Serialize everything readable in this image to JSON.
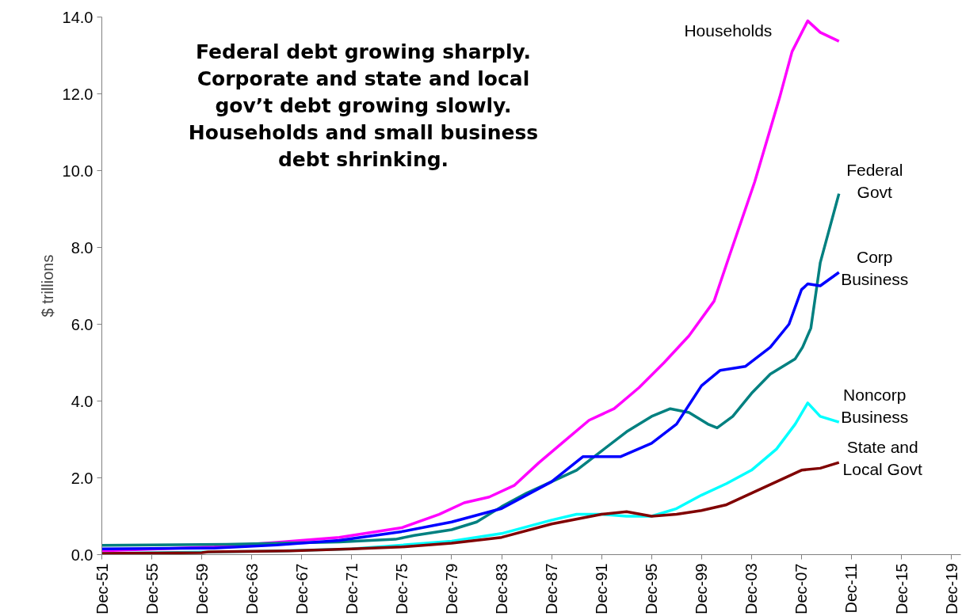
{
  "chart_data": {
    "type": "line",
    "title": "Federal debt growing sharply. Corporate and state and local gov’t debt growing slowly. Households and small business debt shrinking.",
    "ylabel": "$ trillions",
    "xlim": [
      "1951-12",
      "2020-09"
    ],
    "xticks": [
      {
        "value": "1951-12",
        "label": "Dec-51"
      },
      {
        "value": "1955-12",
        "label": "Dec-55"
      },
      {
        "value": "1959-12",
        "label": "Dec-59"
      },
      {
        "value": "1963-12",
        "label": "Dec-63"
      },
      {
        "value": "1967-12",
        "label": "Dec-67"
      },
      {
        "value": "1971-12",
        "label": "Dec-71"
      },
      {
        "value": "1975-12",
        "label": "Dec-75"
      },
      {
        "value": "1979-12",
        "label": "Dec-79"
      },
      {
        "value": "1983-12",
        "label": "Dec-83"
      },
      {
        "value": "1987-12",
        "label": "Dec-87"
      },
      {
        "value": "1991-12",
        "label": "Dec-91"
      },
      {
        "value": "1995-12",
        "label": "Dec-95"
      },
      {
        "value": "1999-12",
        "label": "Dec-99"
      },
      {
        "value": "2003-12",
        "label": "Dec-03"
      },
      {
        "value": "2007-12",
        "label": "Dec-07"
      },
      {
        "value": "2011-12",
        "label": "Dec-11"
      },
      {
        "value": "2015-12",
        "label": "Dec-15"
      },
      {
        "value": "2019-12",
        "label": "Dec-19"
      }
    ],
    "ylim": [
      0,
      14
    ],
    "yticks": [
      {
        "value": 0,
        "label": "0.0"
      },
      {
        "value": 2,
        "label": "2.0"
      },
      {
        "value": 4,
        "label": "4.0"
      },
      {
        "value": 6,
        "label": "6.0"
      },
      {
        "value": 8,
        "label": "8.0"
      },
      {
        "value": 10,
        "label": "10.0"
      },
      {
        "value": 12,
        "label": "12.0"
      },
      {
        "value": 14,
        "label": "14.0"
      }
    ],
    "grid": false,
    "marker": "none",
    "line_style": "solid",
    "series": [
      {
        "name": "Households",
        "color": "#ff00ff",
        "x": [
          "1951-12",
          "1960-12",
          "1965-12",
          "1970-12",
          "1975-12",
          "1978-12",
          "1980-12",
          "1982-12",
          "1984-12",
          "1986-12",
          "1988-12",
          "1990-12",
          "1992-12",
          "1994-12",
          "1996-12",
          "1998-12",
          "2000-12",
          "2002-03",
          "2004-03",
          "2006-03",
          "2007-03",
          "2008-06",
          "2009-06",
          "2010-12"
        ],
        "values": [
          0.1,
          0.2,
          0.32,
          0.45,
          0.7,
          1.05,
          1.35,
          1.5,
          1.8,
          2.4,
          2.95,
          3.5,
          3.8,
          4.35,
          5.0,
          5.7,
          6.6,
          7.8,
          9.7,
          11.9,
          13.1,
          13.9,
          13.6,
          13.37
        ]
      },
      {
        "name": "Federal Govt",
        "color": "#008080",
        "x": [
          "1951-12",
          "1961-12",
          "1970-12",
          "1975-06",
          "1976-12",
          "1979-12",
          "1981-12",
          "1983-12",
          "1985-12",
          "1987-12",
          "1989-12",
          "1991-12",
          "1993-12",
          "1995-12",
          "1997-06",
          "1998-12",
          "2000-06",
          "2001-03",
          "2002-06",
          "2003-12",
          "2005-06",
          "2007-06",
          "2008-01",
          "2008-09",
          "2009-06",
          "2010-12"
        ],
        "values": [
          0.24,
          0.27,
          0.33,
          0.4,
          0.5,
          0.65,
          0.85,
          1.25,
          1.6,
          1.9,
          2.2,
          2.7,
          3.2,
          3.6,
          3.8,
          3.7,
          3.4,
          3.3,
          3.6,
          4.2,
          4.7,
          5.1,
          5.4,
          5.9,
          7.6,
          9.4
        ]
      },
      {
        "name": "Corp Business",
        "color": "#0000ff",
        "x": [
          "1951-12",
          "1960-12",
          "1965-12",
          "1970-12",
          "1975-12",
          "1979-12",
          "1983-12",
          "1987-12",
          "1990-06",
          "1993-06",
          "1995-12",
          "1997-12",
          "1999-12",
          "2001-06",
          "2003-06",
          "2005-06",
          "2006-12",
          "2007-12",
          "2008-06",
          "2009-06",
          "2010-12"
        ],
        "values": [
          0.15,
          0.17,
          0.25,
          0.37,
          0.6,
          0.85,
          1.2,
          1.9,
          2.55,
          2.55,
          2.9,
          3.4,
          4.4,
          4.8,
          4.9,
          5.4,
          6.0,
          6.9,
          7.05,
          7.0,
          7.35
        ]
      },
      {
        "name": "Noncorp Business",
        "color": "#00ffff",
        "x": [
          "1951-12",
          "1966-06",
          "1971-12",
          "1975-12",
          "1979-12",
          "1983-12",
          "1987-12",
          "1989-12",
          "1991-12",
          "1993-12",
          "1995-12",
          "1997-12",
          "1999-12",
          "2001-12",
          "2003-12",
          "2005-12",
          "2007-06",
          "2008-06",
          "2009-06",
          "2010-12"
        ],
        "values": [
          0.03,
          0.1,
          0.15,
          0.25,
          0.35,
          0.55,
          0.9,
          1.05,
          1.05,
          1.0,
          1.0,
          1.2,
          1.55,
          1.85,
          2.2,
          2.75,
          3.4,
          3.95,
          3.6,
          3.45
        ]
      },
      {
        "name": "State and Local Govt",
        "color": "#800000",
        "x": [
          "1951-12",
          "1959-12",
          "1960-06",
          "1966-12",
          "1971-12",
          "1975-12",
          "1979-12",
          "1983-12",
          "1987-12",
          "1991-12",
          "1993-12",
          "1995-12",
          "1997-12",
          "1999-12",
          "2001-12",
          "2003-12",
          "2005-12",
          "2007-12",
          "2009-06",
          "2010-12"
        ],
        "values": [
          0.03,
          0.05,
          0.07,
          0.1,
          0.15,
          0.2,
          0.3,
          0.45,
          0.8,
          1.05,
          1.12,
          1.0,
          1.05,
          1.15,
          1.3,
          1.6,
          1.9,
          2.2,
          2.25,
          2.4
        ]
      }
    ]
  }
}
